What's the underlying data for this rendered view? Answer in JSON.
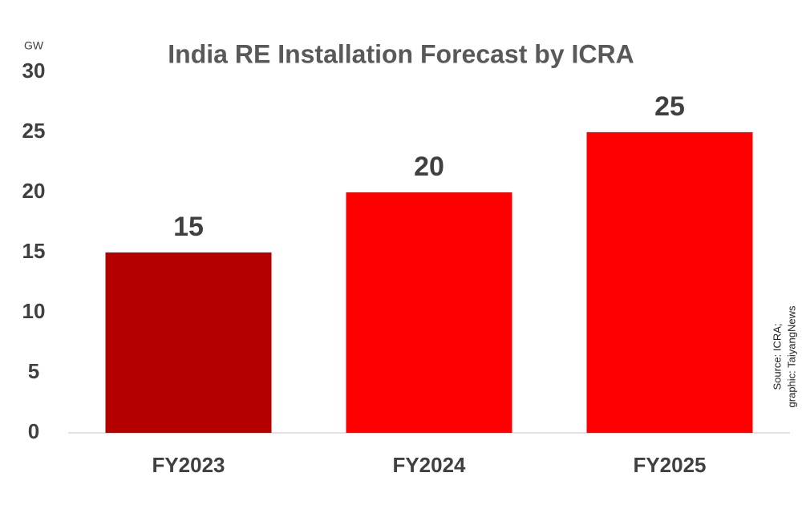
{
  "chart_data": {
    "type": "bar",
    "title": "India RE Installation Forecast by ICRA",
    "y_label": "GW",
    "categories": [
      "FY2023",
      "FY2024",
      "FY2025"
    ],
    "values": [
      15,
      20,
      25
    ],
    "colors": [
      "#b50000",
      "#ff0000",
      "#ff0000"
    ],
    "ylim": [
      0,
      30
    ],
    "yticks": [
      0,
      5,
      10,
      15,
      20,
      25,
      30
    ],
    "grid": false,
    "source": [
      "Source: ICRA;",
      "graphic: TaiyangNews"
    ]
  }
}
